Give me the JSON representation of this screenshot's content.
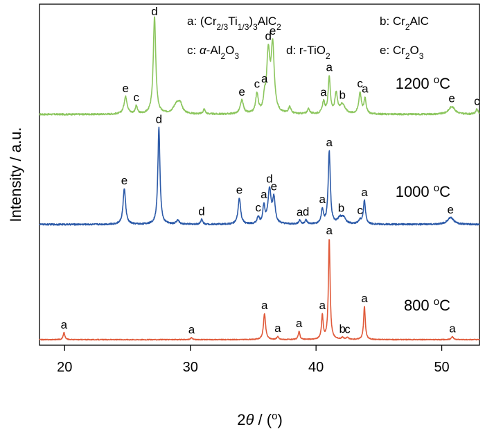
{
  "chart_data": {
    "type": "line",
    "xlabel_parts": [
      "2",
      "θ",
      " / (",
      "o",
      ")"
    ],
    "ylabel": "Intensity / a.u.",
    "xlim": [
      18,
      53
    ],
    "xticks": [
      20,
      30,
      40,
      50
    ],
    "legend": [
      {
        "key": "a",
        "parts": [
          [
            "a: (Cr",
            ""
          ],
          [
            "2/3",
            "sub"
          ],
          [
            "Ti",
            ""
          ],
          [
            "1/3",
            "sub"
          ],
          [
            ")",
            ""
          ],
          [
            "3",
            "sub"
          ],
          [
            "AlC",
            ""
          ],
          [
            "2",
            "sub"
          ]
        ]
      },
      {
        "key": "b",
        "parts": [
          [
            "b: Cr",
            ""
          ],
          [
            "2",
            "sub"
          ],
          [
            "AlC",
            ""
          ]
        ]
      },
      {
        "key": "c",
        "parts": [
          [
            "c: ",
            ""
          ],
          [
            "α",
            "italic"
          ],
          [
            "-Al",
            ""
          ],
          [
            "2",
            "sub"
          ],
          [
            "O",
            ""
          ],
          [
            "3",
            "sub"
          ]
        ]
      },
      {
        "key": "d",
        "parts": [
          [
            "d: r-TiO",
            ""
          ],
          [
            "2",
            "sub"
          ]
        ]
      },
      {
        "key": "e",
        "parts": [
          [
            "e: Cr",
            ""
          ],
          [
            "2",
            "sub"
          ],
          [
            "O",
            ""
          ],
          [
            "3",
            "sub"
          ]
        ]
      }
    ],
    "series": [
      {
        "name": "1200 oC",
        "name_parts": [
          [
            "1200 ",
            ""
          ],
          [
            "o",
            "sup"
          ],
          [
            "C",
            ""
          ]
        ],
        "color": "#8cc65e",
        "baseline": 0.05,
        "noise": 0.008,
        "peaks": [
          [
            24.85,
            0.18,
            0.15
          ],
          [
            25.7,
            0.08,
            0.1
          ],
          [
            27.15,
            1.0,
            0.12
          ],
          [
            28.9,
            0.1,
            0.3
          ],
          [
            29.2,
            0.08,
            0.2
          ],
          [
            31.1,
            0.05,
            0.1
          ],
          [
            34.1,
            0.14,
            0.15
          ],
          [
            35.3,
            0.2,
            0.12
          ],
          [
            35.9,
            0.12,
            0.1
          ],
          [
            36.2,
            0.6,
            0.15
          ],
          [
            36.55,
            0.68,
            0.15
          ],
          [
            37.9,
            0.07,
            0.12
          ],
          [
            39.4,
            0.05,
            0.12
          ],
          [
            40.6,
            0.12,
            0.12
          ],
          [
            41.05,
            0.38,
            0.1
          ],
          [
            41.6,
            0.2,
            0.12
          ],
          [
            42.1,
            0.1,
            0.25
          ],
          [
            43.5,
            0.22,
            0.12
          ],
          [
            43.9,
            0.16,
            0.1
          ],
          [
            50.8,
            0.08,
            0.3
          ],
          [
            52.8,
            0.05,
            0.12
          ]
        ],
        "peak_labels": [
          [
            "e",
            24.85
          ],
          [
            "c",
            25.7
          ],
          [
            "d",
            27.15
          ],
          [
            "e",
            34.1
          ],
          [
            "c",
            35.3
          ],
          [
            "a",
            35.9
          ],
          [
            "d",
            36.2
          ],
          [
            "e",
            36.55
          ],
          [
            "a",
            40.6
          ],
          [
            "a",
            41.05
          ],
          [
            "b",
            42.1
          ],
          [
            "c",
            43.5
          ],
          [
            "a",
            43.9
          ],
          [
            "e",
            50.8
          ],
          [
            "c",
            52.8
          ]
        ]
      },
      {
        "name": "1000 oC",
        "name_parts": [
          [
            "1000 ",
            ""
          ],
          [
            "o",
            "sup"
          ],
          [
            "C",
            ""
          ]
        ],
        "color": "#2c5aa8",
        "baseline": 0.03,
        "noise": 0.008,
        "peaks": [
          [
            24.75,
            0.37,
            0.12
          ],
          [
            27.5,
            1.0,
            0.1
          ],
          [
            29.0,
            0.04,
            0.15
          ],
          [
            30.9,
            0.05,
            0.1
          ],
          [
            33.9,
            0.27,
            0.12
          ],
          [
            35.4,
            0.07,
            0.1
          ],
          [
            35.85,
            0.18,
            0.1
          ],
          [
            36.3,
            0.35,
            0.15
          ],
          [
            36.65,
            0.25,
            0.12
          ],
          [
            38.7,
            0.04,
            0.1
          ],
          [
            39.2,
            0.04,
            0.1
          ],
          [
            40.5,
            0.15,
            0.1
          ],
          [
            41.05,
            0.75,
            0.1
          ],
          [
            41.9,
            0.06,
            0.2
          ],
          [
            42.2,
            0.06,
            0.2
          ],
          [
            43.5,
            0.04,
            0.15
          ],
          [
            43.85,
            0.24,
            0.1
          ],
          [
            50.7,
            0.07,
            0.3
          ]
        ],
        "peak_labels": [
          [
            "e",
            24.75
          ],
          [
            "d",
            27.5
          ],
          [
            "d",
            30.9
          ],
          [
            "e",
            33.9
          ],
          [
            "c",
            35.4
          ],
          [
            "a",
            35.85
          ],
          [
            "d",
            36.3
          ],
          [
            "e",
            36.65
          ],
          [
            "a",
            38.7
          ],
          [
            "d",
            39.2
          ],
          [
            "a",
            40.5
          ],
          [
            "a",
            41.05
          ],
          [
            "b",
            42.0
          ],
          [
            "c",
            43.5
          ],
          [
            "a",
            43.85
          ],
          [
            "e",
            50.7
          ]
        ]
      },
      {
        "name": "800 oC",
        "name_parts": [
          [
            "800 ",
            ""
          ],
          [
            "o",
            "sup"
          ],
          [
            "C",
            ""
          ]
        ],
        "color": "#e05a3a",
        "baseline": 0.0,
        "noise": 0.004,
        "peaks": [
          [
            19.95,
            0.07,
            0.08
          ],
          [
            30.1,
            0.02,
            0.08
          ],
          [
            35.9,
            0.26,
            0.1
          ],
          [
            36.95,
            0.03,
            0.08
          ],
          [
            38.65,
            0.08,
            0.08
          ],
          [
            40.5,
            0.24,
            0.08
          ],
          [
            41.05,
            1.0,
            0.08
          ],
          [
            42.1,
            0.02,
            0.1
          ],
          [
            42.5,
            0.02,
            0.1
          ],
          [
            43.85,
            0.33,
            0.08
          ],
          [
            50.85,
            0.03,
            0.1
          ]
        ],
        "peak_labels": [
          [
            "a",
            19.95
          ],
          [
            "a",
            30.1
          ],
          [
            "a",
            35.9
          ],
          [
            "a",
            36.95
          ],
          [
            "a",
            38.65
          ],
          [
            "a",
            40.5
          ],
          [
            "a",
            41.05
          ],
          [
            "b",
            42.1
          ],
          [
            "c",
            42.5
          ],
          [
            "a",
            43.85
          ],
          [
            "a",
            50.85
          ]
        ]
      }
    ]
  }
}
